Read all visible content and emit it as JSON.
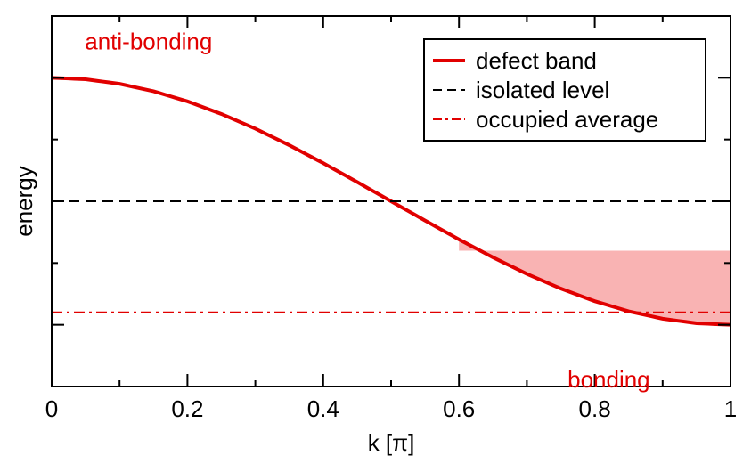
{
  "chart_data": {
    "type": "line",
    "xlabel": "k [π]",
    "ylabel": "energy",
    "xlim": [
      0,
      1
    ],
    "ylim": [
      -1.5,
      1.5
    ],
    "x_ticks": [
      "0",
      "0.2",
      "0.4",
      "0.6",
      "0.8",
      "1"
    ],
    "x_tick_values": [
      0,
      0.2,
      0.4,
      0.6,
      0.8,
      1
    ],
    "grid": false,
    "legend_position": "top-right",
    "series": [
      {
        "name": "defect band",
        "style": "solid",
        "color": "#e10000",
        "x": [
          0,
          0.05,
          0.1,
          0.15,
          0.2,
          0.25,
          0.3,
          0.35,
          0.4,
          0.45,
          0.5,
          0.55,
          0.6,
          0.65,
          0.7,
          0.75,
          0.8,
          0.85,
          0.9,
          0.95,
          1.0
        ],
        "y": [
          1.0,
          0.988,
          0.951,
          0.891,
          0.809,
          0.707,
          0.588,
          0.454,
          0.309,
          0.156,
          0.0,
          -0.156,
          -0.309,
          -0.454,
          -0.588,
          -0.707,
          -0.809,
          -0.891,
          -0.951,
          -0.988,
          -1.0
        ]
      },
      {
        "name": "isolated level",
        "style": "dashed",
        "color": "#000000",
        "x": [
          0,
          1
        ],
        "y": [
          0,
          0
        ]
      },
      {
        "name": "occupied average",
        "style": "dash-dot",
        "color": "#e10000",
        "x": [
          0,
          1
        ],
        "y": [
          -0.9,
          -0.9
        ]
      }
    ],
    "filled_region": {
      "color": "#f9b3b3",
      "x_start": 0.6,
      "x_end": 1.0,
      "upper_y": -0.4,
      "lower": "defect band"
    },
    "annotations": [
      {
        "text": "anti-bonding",
        "color": "#e10000",
        "x": 0.02,
        "y": 1.2
      },
      {
        "text": "bonding",
        "color": "#e10000",
        "x": 0.76,
        "y": -1.45
      }
    ]
  }
}
